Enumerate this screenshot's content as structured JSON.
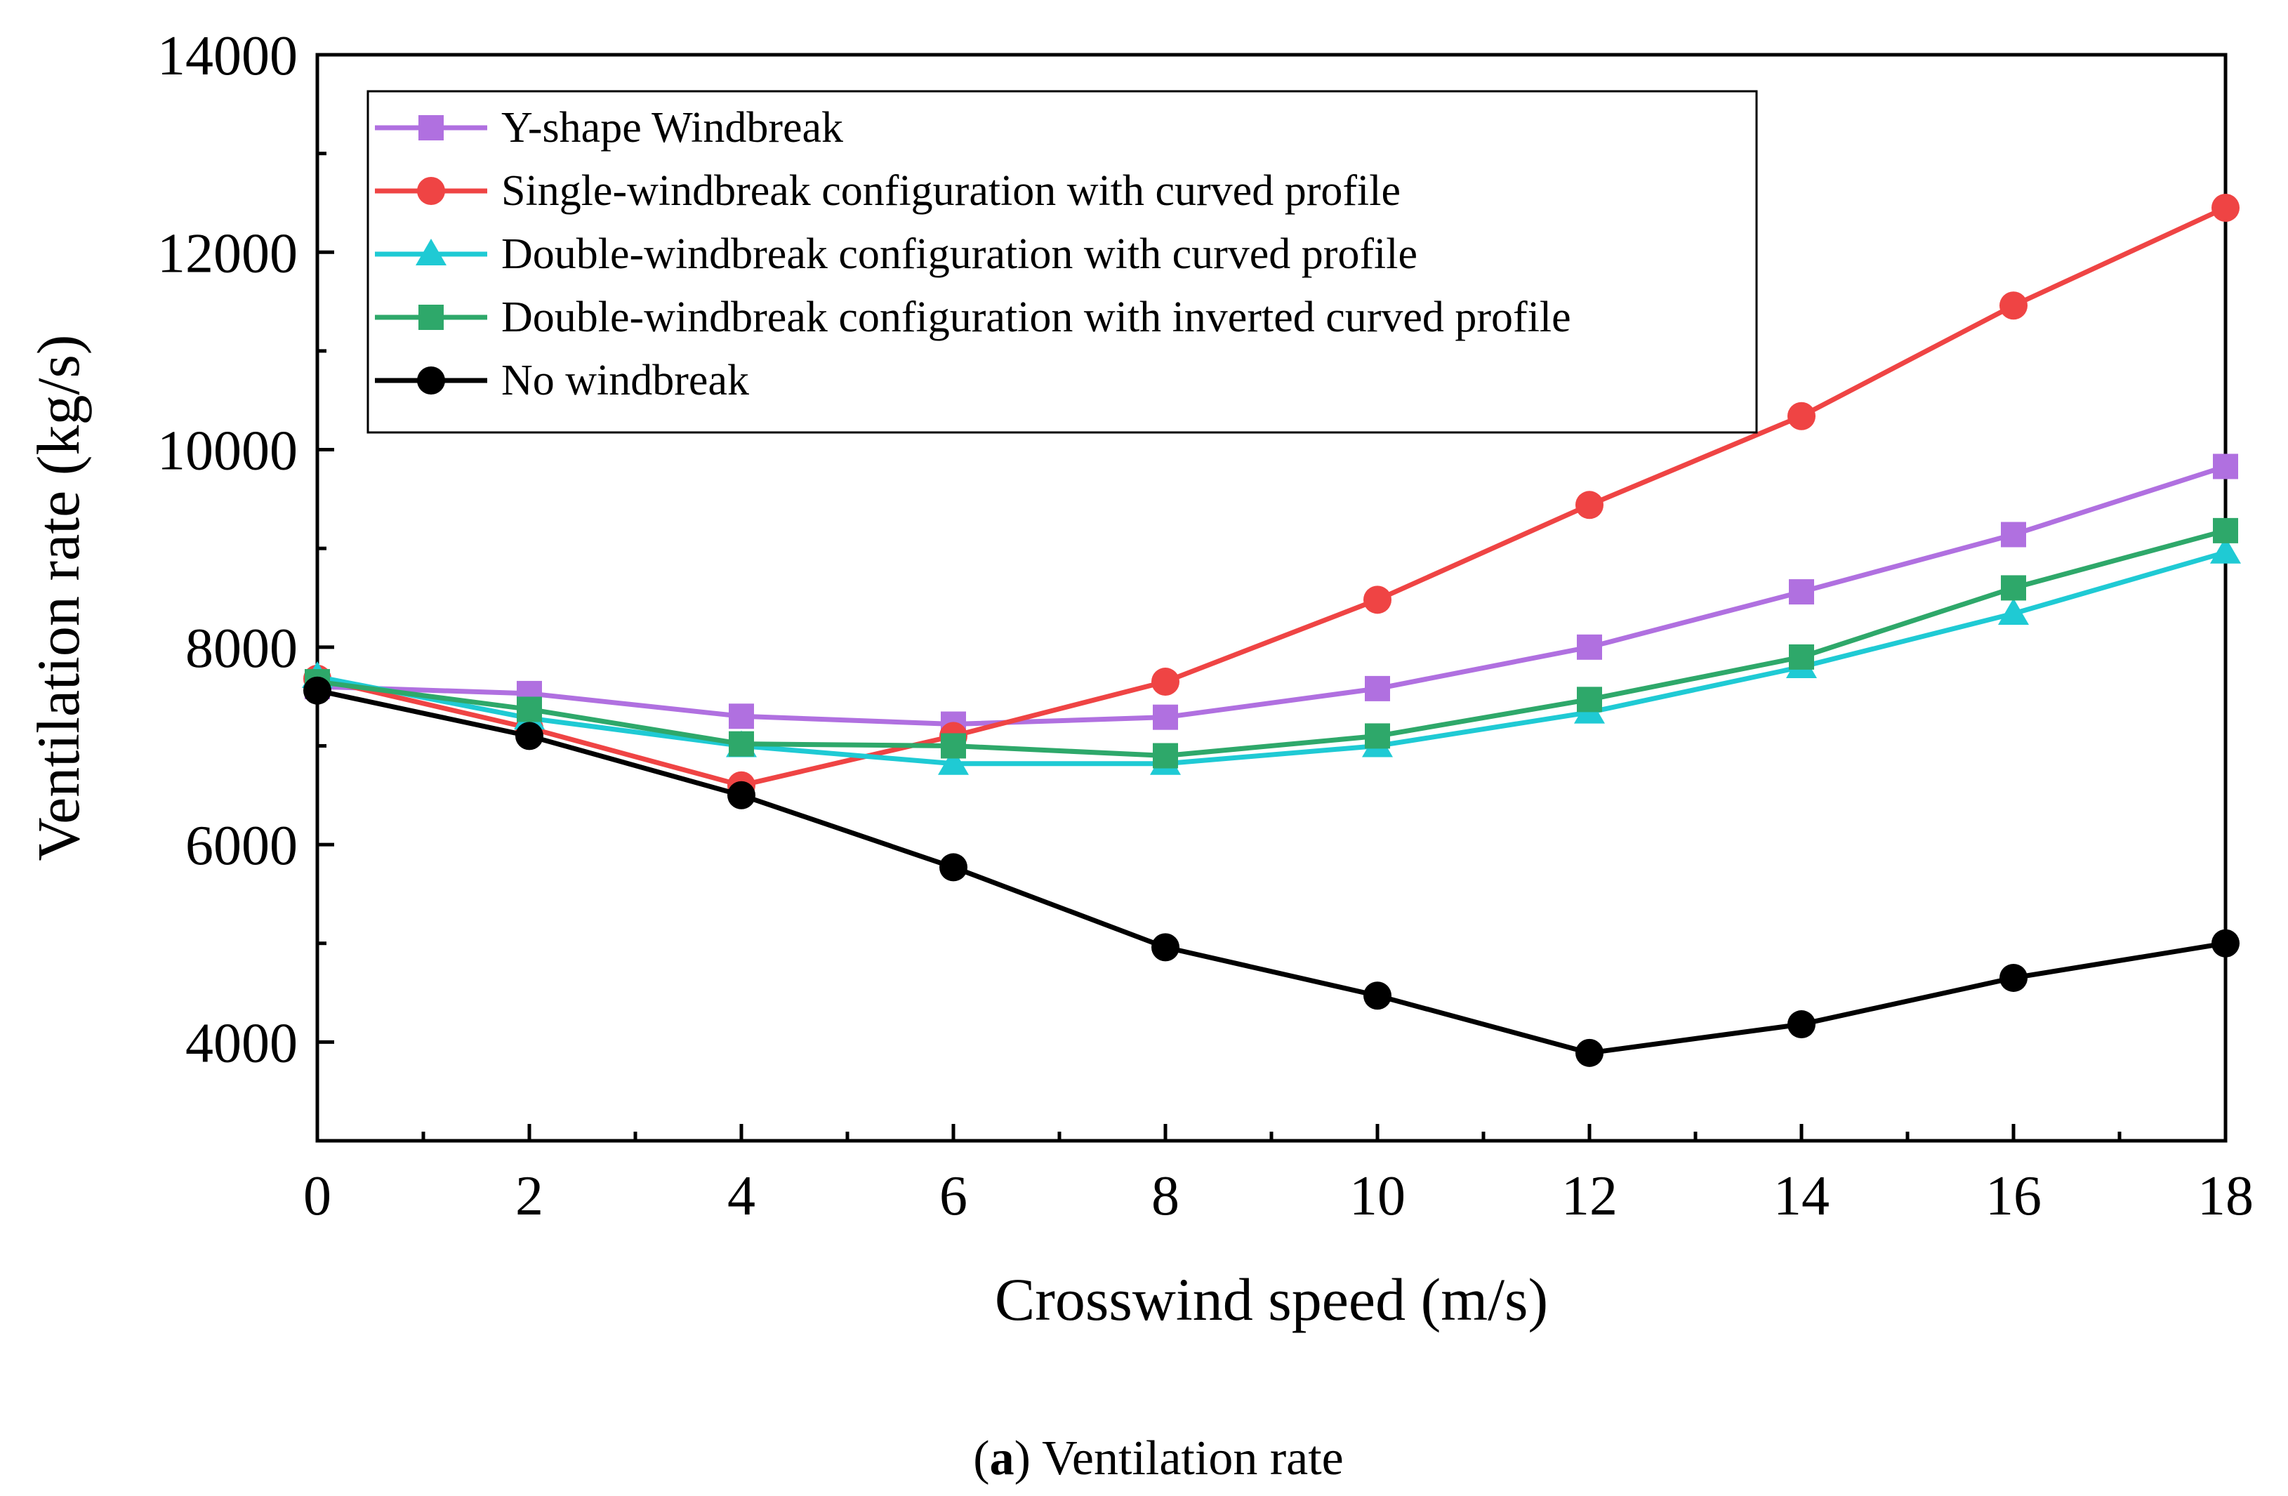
{
  "chart_data": {
    "type": "line",
    "xlabel": "Crosswind speed (m/s)",
    "ylabel": "Ventilation rate (kg/s)",
    "xlim": [
      0,
      18
    ],
    "ylim": [
      3000,
      14000
    ],
    "xticks": [
      0,
      2,
      4,
      6,
      8,
      10,
      12,
      14,
      16,
      18
    ],
    "yticks": [
      4000,
      6000,
      8000,
      10000,
      12000,
      14000
    ],
    "x": [
      0,
      2,
      4,
      6,
      8,
      10,
      12,
      14,
      16,
      18
    ],
    "legend_position": "top-left",
    "grid": false,
    "series": [
      {
        "name": "Y-shape Windbreak",
        "color": "#b070e0",
        "marker": "square",
        "values": [
          7600,
          7530,
          7300,
          7220,
          7290,
          7580,
          8000,
          8560,
          9140,
          9830
        ]
      },
      {
        "name": "Single-windbreak configuration with curved profile",
        "color": "#ef4444",
        "marker": "circle",
        "values": [
          7680,
          7180,
          6600,
          7100,
          7650,
          8480,
          9440,
          10340,
          11460,
          12450
        ]
      },
      {
        "name": "Double-windbreak configuration with curved profile",
        "color": "#1fcad4",
        "marker": "triangle",
        "values": [
          7700,
          7280,
          7000,
          6820,
          6820,
          7000,
          7340,
          7800,
          8340,
          8960
        ]
      },
      {
        "name": "Double-windbreak configuration with inverted curved profile",
        "color": "#2ea86a",
        "marker": "square",
        "values": [
          7650,
          7370,
          7020,
          7000,
          6900,
          7100,
          7470,
          7900,
          8600,
          9180
        ]
      },
      {
        "name": "No windbreak",
        "color": "#000000",
        "marker": "circle",
        "values": [
          7560,
          7100,
          6500,
          5770,
          4960,
          4470,
          3890,
          4180,
          4650,
          5000
        ]
      }
    ]
  },
  "caption": {
    "prefix": "(",
    "letter": "a",
    "suffix": ") Ventilation rate"
  }
}
